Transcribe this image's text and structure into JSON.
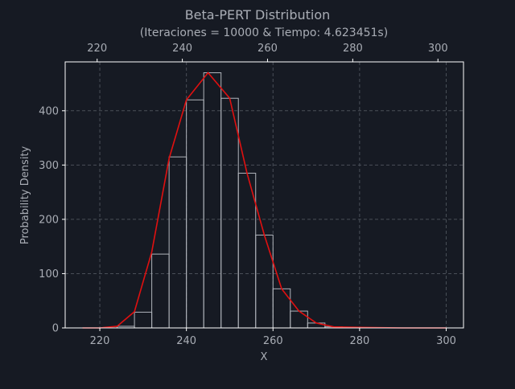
{
  "colors": {
    "background": "#161a23",
    "text": "#a9adb5",
    "axes": "#ffffff",
    "grid": "#4a4f58",
    "bar_edge": "#b0b4bb",
    "curve": "#e01010"
  },
  "chart_data": {
    "type": "bar",
    "title": "Beta-PERT Distribution",
    "subtitle": "(Iteraciones = 10000 & Tiempo: 4.623451s)",
    "xlabel": "X",
    "ylabel": "Probability Density",
    "xlim": [
      212,
      304
    ],
    "ylim": [
      0,
      490
    ],
    "x_ticks": [
      220,
      240,
      260,
      280,
      300
    ],
    "x_tick_labels": [
      "220",
      "240",
      "260",
      "280",
      "300"
    ],
    "y_ticks": [
      0,
      100,
      200,
      300,
      400
    ],
    "y_tick_labels": [
      "0",
      "100",
      "200",
      "300",
      "400"
    ],
    "top_x_ticks": [
      220,
      240,
      260,
      280,
      300
    ],
    "top_x_tick_labels": [
      "220",
      "240",
      "260",
      "280",
      "300"
    ],
    "top_xlim": [
      212.5,
      306
    ],
    "grid": true,
    "bins": [
      {
        "x0": 224,
        "x1": 228,
        "value": 3
      },
      {
        "x0": 228,
        "x1": 232,
        "value": 29
      },
      {
        "x0": 232,
        "x1": 236,
        "value": 136
      },
      {
        "x0": 236,
        "x1": 240,
        "value": 315
      },
      {
        "x0": 240,
        "x1": 244,
        "value": 420
      },
      {
        "x0": 244,
        "x1": 248,
        "value": 470
      },
      {
        "x0": 248,
        "x1": 252,
        "value": 423
      },
      {
        "x0": 252,
        "x1": 256,
        "value": 285
      },
      {
        "x0": 256,
        "x1": 260,
        "value": 171
      },
      {
        "x0": 260,
        "x1": 264,
        "value": 72
      },
      {
        "x0": 264,
        "x1": 268,
        "value": 31
      },
      {
        "x0": 268,
        "x1": 272,
        "value": 9
      },
      {
        "x0": 272,
        "x1": 276,
        "value": 2
      },
      {
        "x0": 276,
        "x1": 280,
        "value": 1
      }
    ],
    "series": [
      {
        "type": "line",
        "x": [
          216,
          220,
          224,
          228,
          232,
          236,
          240,
          245,
          250,
          254,
          258,
          262,
          266,
          270,
          274,
          280,
          290,
          300
        ],
        "values": [
          0,
          0,
          3,
          30,
          140,
          312,
          420,
          470,
          423,
          285,
          171,
          72,
          31,
          9,
          2,
          1,
          0,
          0
        ]
      }
    ]
  }
}
